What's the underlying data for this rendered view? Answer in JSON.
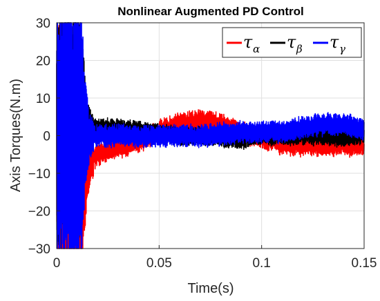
{
  "chart_data": {
    "type": "line",
    "title": "Nonlinear Augmented PD Control",
    "xlabel": "Time(s)",
    "ylabel": "Axis Torques(N.m)",
    "xlim": [
      0,
      0.15
    ],
    "ylim": [
      -30,
      30
    ],
    "xticks": [
      0,
      0.05,
      0.1,
      0.15
    ],
    "xtick_labels": [
      "0",
      "0.05",
      "0.1",
      "0.15"
    ],
    "yticks": [
      -30,
      -20,
      -10,
      0,
      10,
      20,
      30
    ],
    "ytick_labels": [
      "−30",
      "−20",
      "−10",
      "0",
      "10",
      "20",
      "30"
    ],
    "grid": true,
    "legend_placement": "top-right",
    "series": [
      {
        "name": "τ",
        "subscript": "α",
        "color": "#ff0000",
        "x": [
          0,
          0.004,
          0.008,
          0.011,
          0.013,
          0.015,
          0.02,
          0.03,
          0.04,
          0.05,
          0.06,
          0.07,
          0.08,
          0.09,
          0.1,
          0.11,
          0.12,
          0.13,
          0.14,
          0.15
        ],
        "values": [
          0,
          -12,
          -15,
          -14,
          -11,
          -8,
          -5,
          -3,
          -1.5,
          1,
          3,
          4,
          3,
          0.5,
          -0.5,
          -2,
          -2.5,
          -2.5,
          -2.5,
          -2.5
        ]
      },
      {
        "name": "τ",
        "subscript": "β",
        "color": "#000000",
        "x": [
          0,
          0.004,
          0.008,
          0.011,
          0.013,
          0.015,
          0.02,
          0.03,
          0.04,
          0.05,
          0.06,
          0.07,
          0.08,
          0.09,
          0.1,
          0.11,
          0.12,
          0.13,
          0.14,
          0.15
        ],
        "values": [
          0,
          5,
          6,
          4,
          3,
          2,
          2,
          2,
          1.5,
          0.5,
          0,
          0,
          -0.5,
          -1,
          0,
          0,
          0,
          0,
          -0.5,
          0.5
        ]
      },
      {
        "name": "τ",
        "subscript": "γ",
        "color": "#0000ff",
        "x": [
          0,
          0.004,
          0.008,
          0.011,
          0.013,
          0.015,
          0.02,
          0.03,
          0.04,
          0.05,
          0.06,
          0.07,
          0.08,
          0.09,
          0.1,
          0.11,
          0.12,
          0.13,
          0.14,
          0.15
        ],
        "values": [
          0,
          0,
          0,
          0,
          0,
          0,
          0,
          0,
          0,
          0,
          0,
          0,
          0.5,
          1,
          1,
          1,
          2,
          3,
          3,
          1.5
        ]
      }
    ]
  }
}
